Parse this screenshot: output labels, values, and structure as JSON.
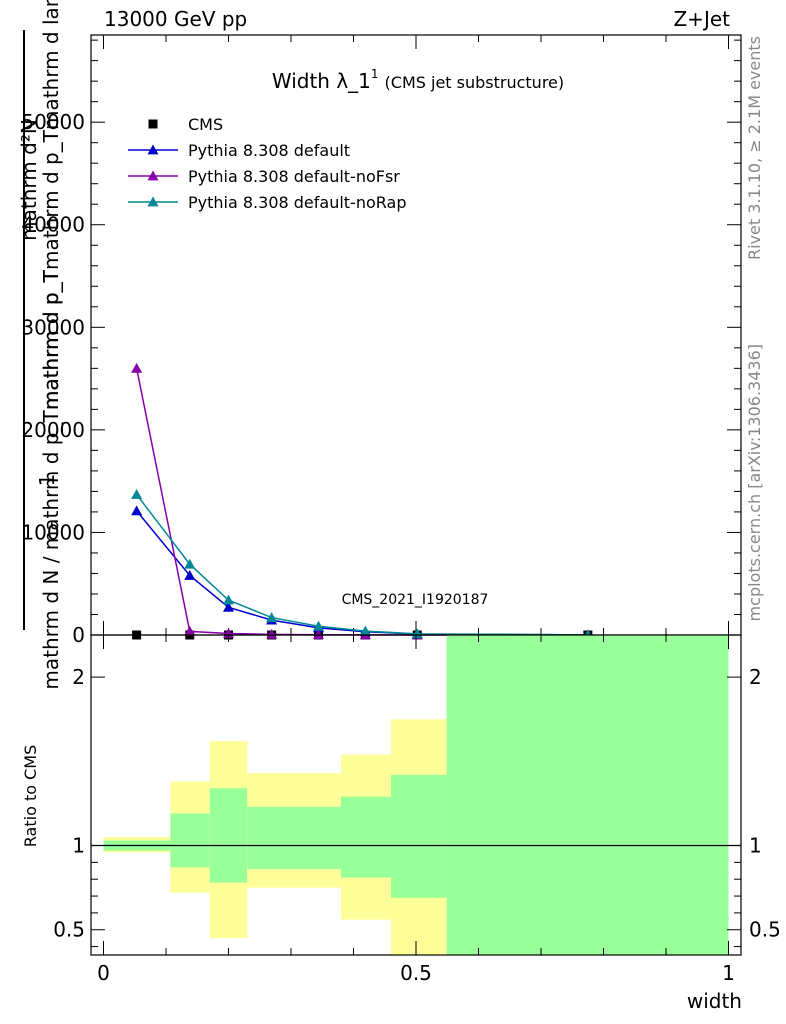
{
  "header": {
    "left": "13000 GeV pp",
    "right": "Z+Jet"
  },
  "side_text": {
    "top": "Rivet 3.1.10, ≥ 2.1M events",
    "bottom": "mcplots.cern.ch [arXiv:1306.3436]"
  },
  "watermark": "CMS_2021_I1920187",
  "chart_data": [
    {
      "type": "line",
      "title_main": "Width λ_1",
      "title_sup": "1",
      "title_sub": "(CMS jet substructure)",
      "ylabel_top": "mathrm d²N",
      "ylabel_mid": "mathrm d p_Tmathrm d p_Tmathrm d lambda",
      "ylabel_one": "1",
      "ylabel_bottom": "mathrm d N / mathrm d p_Tmathrm d p_T",
      "ylim": [
        0,
        58500
      ],
      "y_ticks": [
        0,
        10000,
        20000,
        30000,
        40000,
        50000
      ],
      "y_tick_labels": [
        "0",
        "10000",
        "20000",
        "30000",
        "40000",
        "50000"
      ],
      "xlim": [
        -0.02,
        1.02
      ],
      "legend_position": "top-left",
      "series": [
        {
          "name": "CMS",
          "color": "#000000",
          "marker": "square",
          "x": [
            0.053,
            0.138,
            0.2,
            0.269,
            0.344,
            0.419,
            0.502,
            0.775
          ],
          "y": [
            0,
            0,
            0,
            0,
            0,
            0,
            0,
            0
          ]
        },
        {
          "name": "Pythia 8.308 default",
          "color": "#0000cc",
          "marker": "triangle",
          "x": [
            0.053,
            0.138,
            0.2,
            0.269,
            0.344,
            0.419,
            0.502,
            0.775
          ],
          "y": [
            12100,
            5800,
            2700,
            1450,
            700,
            320,
            90,
            10
          ]
        },
        {
          "name": "Pythia 8.308 default-noFsr",
          "color": "#8800aa",
          "marker": "triangle",
          "x": [
            0.053,
            0.138,
            0.2,
            0.269,
            0.344,
            0.419,
            0.502,
            0.775
          ],
          "y": [
            26000,
            350,
            150,
            60,
            30,
            15,
            5,
            0
          ]
        },
        {
          "name": "Pythia 8.308 default-noRap",
          "color": "#008899",
          "marker": "triangle",
          "x": [
            0.053,
            0.138,
            0.2,
            0.269,
            0.344,
            0.419,
            0.502,
            0.775
          ],
          "y": [
            13700,
            6900,
            3400,
            1700,
            850,
            380,
            110,
            12
          ]
        }
      ]
    },
    {
      "type": "area",
      "ylabel": "Ratio to CMS",
      "xlabel": "width",
      "xlim": [
        -0.02,
        1.02
      ],
      "ylim": [
        0.35,
        2.25
      ],
      "x_ticks": [
        0,
        0.5,
        1
      ],
      "x_tick_labels": [
        "0",
        "0.5",
        "1"
      ],
      "y_ticks": [
        0.5,
        1,
        2
      ],
      "y_tick_labels": [
        "0.5",
        "1",
        "2"
      ],
      "reference_line": 1,
      "bins": [
        {
          "x0": 0.0,
          "x1": 0.107,
          "inner_lo": 0.97,
          "inner_hi": 1.03,
          "outer_lo": 0.96,
          "outer_hi": 1.05
        },
        {
          "x0": 0.107,
          "x1": 0.17,
          "inner_lo": 0.87,
          "inner_hi": 1.19,
          "outer_lo": 0.72,
          "outer_hi": 1.38
        },
        {
          "x0": 0.17,
          "x1": 0.23,
          "inner_lo": 0.78,
          "inner_hi": 1.34,
          "outer_lo": 0.45,
          "outer_hi": 1.62
        },
        {
          "x0": 0.23,
          "x1": 0.38,
          "inner_lo": 0.86,
          "inner_hi": 1.23,
          "outer_lo": 0.75,
          "outer_hi": 1.43
        },
        {
          "x0": 0.38,
          "x1": 0.46,
          "inner_lo": 0.81,
          "inner_hi": 1.29,
          "outer_lo": 0.56,
          "outer_hi": 1.54
        },
        {
          "x0": 0.46,
          "x1": 0.549,
          "inner_lo": 0.69,
          "inner_hi": 1.42,
          "outer_lo": 0.35,
          "outer_hi": 1.75
        },
        {
          "x0": 0.549,
          "x1": 1.0,
          "inner_lo": 0.35,
          "inner_hi": 2.25,
          "outer_lo": 0.35,
          "outer_hi": 2.25
        }
      ],
      "band_colors": {
        "inner": "#99ff99",
        "outer": "#ffff99"
      }
    }
  ]
}
